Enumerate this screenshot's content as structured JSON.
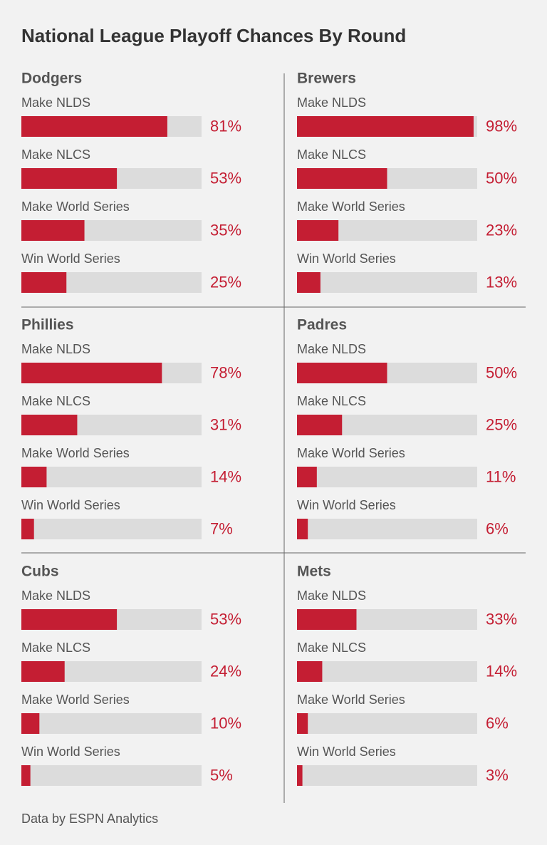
{
  "title": "National League Playoff Chances By Round",
  "source": "Data by ESPN Analytics",
  "chart_data": [
    {
      "type": "bar",
      "title": "Dodgers",
      "categories": [
        "Make NLDS",
        "Make NLCS",
        "Make World Series",
        "Win World Series"
      ],
      "values": [
        81,
        53,
        35,
        25
      ],
      "value_labels": [
        "81%",
        "53%",
        "35%",
        "25%"
      ],
      "xlim": [
        0,
        100
      ],
      "color": "#c41e33"
    },
    {
      "type": "bar",
      "title": "Brewers",
      "categories": [
        "Make NLDS",
        "Make NLCS",
        "Make World Series",
        "Win World Series"
      ],
      "values": [
        98,
        50,
        23,
        13
      ],
      "value_labels": [
        "98%",
        "50%",
        "23%",
        "13%"
      ],
      "xlim": [
        0,
        100
      ],
      "color": "#c41e33"
    },
    {
      "type": "bar",
      "title": "Phillies",
      "categories": [
        "Make NLDS",
        "Make NLCS",
        "Make World Series",
        "Win World Series"
      ],
      "values": [
        78,
        31,
        14,
        7
      ],
      "value_labels": [
        "78%",
        "31%",
        "14%",
        "7%"
      ],
      "xlim": [
        0,
        100
      ],
      "color": "#c41e33"
    },
    {
      "type": "bar",
      "title": "Padres",
      "categories": [
        "Make NLDS",
        "Make NLCS",
        "Make World Series",
        "Win World Series"
      ],
      "values": [
        50,
        25,
        11,
        6
      ],
      "value_labels": [
        "50%",
        "25%",
        "11%",
        "6%"
      ],
      "xlim": [
        0,
        100
      ],
      "color": "#c41e33"
    },
    {
      "type": "bar",
      "title": "Cubs",
      "categories": [
        "Make NLDS",
        "Make NLCS",
        "Make World Series",
        "Win World Series"
      ],
      "values": [
        53,
        24,
        10,
        5
      ],
      "value_labels": [
        "53%",
        "24%",
        "10%",
        "5%"
      ],
      "xlim": [
        0,
        100
      ],
      "color": "#c41e33"
    },
    {
      "type": "bar",
      "title": "Mets",
      "categories": [
        "Make NLDS",
        "Make NLCS",
        "Make World Series",
        "Win World Series"
      ],
      "values": [
        33,
        14,
        6,
        3
      ],
      "value_labels": [
        "33%",
        "14%",
        "6%",
        "3%"
      ],
      "xlim": [
        0,
        100
      ],
      "color": "#c41e33"
    }
  ]
}
